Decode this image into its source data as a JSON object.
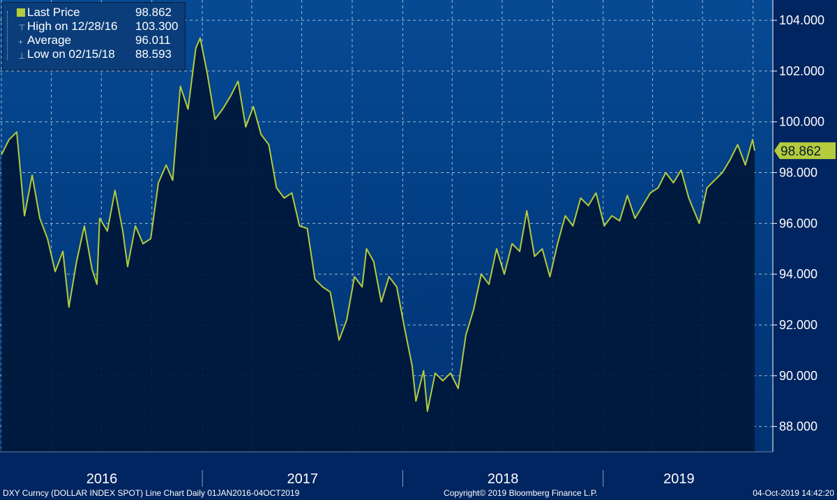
{
  "chart_data": {
    "type": "area",
    "legend": {
      "rows": [
        {
          "label": "Last Price",
          "value": "98.862"
        },
        {
          "label": "High on 12/28/16",
          "value": "103.300"
        },
        {
          "label": "Average",
          "value": "96.011"
        },
        {
          "label": "Low on 02/15/18",
          "value": "88.593"
        }
      ],
      "placement": "top-left"
    },
    "y_axis": {
      "side": "right",
      "ylim": [
        87.0,
        104.8
      ],
      "ticks": [
        "104.000",
        "102.000",
        "100.000",
        "98.000",
        "96.000",
        "94.000",
        "92.000",
        "90.000",
        "88.000"
      ],
      "tick_values": [
        104,
        102,
        100,
        98,
        96,
        94,
        92,
        90,
        88
      ]
    },
    "x_axis": {
      "start": "2016-01-01",
      "end": "2019-10-04",
      "year_labels": [
        "2016",
        "2017",
        "2018",
        "2019"
      ],
      "year_boundaries": [
        "2017-01-01",
        "2018-01-01",
        "2019-01-01"
      ],
      "gridline_months": [
        "2016-01",
        "2016-04",
        "2016-07",
        "2016-10",
        "2017-01",
        "2017-04",
        "2017-07",
        "2017-10",
        "2018-01",
        "2018-04",
        "2018-07",
        "2018-10",
        "2019-01",
        "2019-04",
        "2019-07",
        "2019-10"
      ]
    },
    "last_price_tag": "98.862",
    "grid": true,
    "series": [
      {
        "name": "Last Price",
        "color": "#b4cc3c",
        "points": [
          [
            "2016-01-01",
            98.7
          ],
          [
            "2016-01-15",
            99.3
          ],
          [
            "2016-01-29",
            99.6
          ],
          [
            "2016-02-12",
            96.3
          ],
          [
            "2016-02-26",
            97.9
          ],
          [
            "2016-03-11",
            96.2
          ],
          [
            "2016-03-25",
            95.4
          ],
          [
            "2016-04-08",
            94.1
          ],
          [
            "2016-04-22",
            94.9
          ],
          [
            "2016-05-03",
            92.7
          ],
          [
            "2016-05-17",
            94.5
          ],
          [
            "2016-05-31",
            95.9
          ],
          [
            "2016-06-14",
            94.2
          ],
          [
            "2016-06-23",
            93.6
          ],
          [
            "2016-06-28",
            96.2
          ],
          [
            "2016-07-12",
            95.7
          ],
          [
            "2016-07-26",
            97.3
          ],
          [
            "2016-08-09",
            95.7
          ],
          [
            "2016-08-18",
            94.3
          ],
          [
            "2016-09-01",
            95.9
          ],
          [
            "2016-09-15",
            95.2
          ],
          [
            "2016-09-29",
            95.4
          ],
          [
            "2016-10-13",
            97.6
          ],
          [
            "2016-10-27",
            98.3
          ],
          [
            "2016-11-08",
            97.7
          ],
          [
            "2016-11-22",
            101.4
          ],
          [
            "2016-12-06",
            100.5
          ],
          [
            "2016-12-20",
            102.9
          ],
          [
            "2016-12-28",
            103.3
          ],
          [
            "2017-01-10",
            101.9
          ],
          [
            "2017-01-24",
            100.1
          ],
          [
            "2017-02-07",
            100.5
          ],
          [
            "2017-02-21",
            101.0
          ],
          [
            "2017-03-07",
            101.6
          ],
          [
            "2017-03-21",
            99.8
          ],
          [
            "2017-04-04",
            100.6
          ],
          [
            "2017-04-18",
            99.5
          ],
          [
            "2017-05-02",
            99.1
          ],
          [
            "2017-05-16",
            97.4
          ],
          [
            "2017-05-30",
            97.0
          ],
          [
            "2017-06-13",
            97.2
          ],
          [
            "2017-06-27",
            95.9
          ],
          [
            "2017-07-11",
            95.8
          ],
          [
            "2017-07-25",
            93.8
          ],
          [
            "2017-08-08",
            93.5
          ],
          [
            "2017-08-22",
            93.3
          ],
          [
            "2017-09-07",
            91.4
          ],
          [
            "2017-09-21",
            92.2
          ],
          [
            "2017-10-05",
            93.9
          ],
          [
            "2017-10-19",
            93.5
          ],
          [
            "2017-10-27",
            95.0
          ],
          [
            "2017-11-09",
            94.5
          ],
          [
            "2017-11-23",
            92.9
          ],
          [
            "2017-12-07",
            93.9
          ],
          [
            "2017-12-21",
            93.5
          ],
          [
            "2018-01-04",
            91.9
          ],
          [
            "2018-01-18",
            90.4
          ],
          [
            "2018-01-25",
            89.0
          ],
          [
            "2018-02-08",
            90.2
          ],
          [
            "2018-02-15",
            88.6
          ],
          [
            "2018-03-01",
            90.1
          ],
          [
            "2018-03-15",
            89.8
          ],
          [
            "2018-03-29",
            90.1
          ],
          [
            "2018-04-12",
            89.5
          ],
          [
            "2018-04-26",
            91.6
          ],
          [
            "2018-05-10",
            92.6
          ],
          [
            "2018-05-24",
            94.0
          ],
          [
            "2018-06-07",
            93.6
          ],
          [
            "2018-06-21",
            95.0
          ],
          [
            "2018-07-05",
            94.0
          ],
          [
            "2018-07-19",
            95.2
          ],
          [
            "2018-08-02",
            94.9
          ],
          [
            "2018-08-15",
            96.5
          ],
          [
            "2018-08-29",
            94.7
          ],
          [
            "2018-09-12",
            95.0
          ],
          [
            "2018-09-26",
            93.9
          ],
          [
            "2018-10-10",
            95.2
          ],
          [
            "2018-10-24",
            96.3
          ],
          [
            "2018-11-07",
            95.9
          ],
          [
            "2018-11-21",
            97.0
          ],
          [
            "2018-12-05",
            96.7
          ],
          [
            "2018-12-19",
            97.2
          ],
          [
            "2019-01-03",
            95.9
          ],
          [
            "2019-01-17",
            96.3
          ],
          [
            "2019-01-31",
            96.1
          ],
          [
            "2019-02-14",
            97.1
          ],
          [
            "2019-02-28",
            96.2
          ],
          [
            "2019-03-14",
            96.7
          ],
          [
            "2019-03-28",
            97.2
          ],
          [
            "2019-04-11",
            97.4
          ],
          [
            "2019-04-25",
            98.0
          ],
          [
            "2019-05-09",
            97.6
          ],
          [
            "2019-05-23",
            98.1
          ],
          [
            "2019-06-06",
            97.0
          ],
          [
            "2019-06-25",
            96.0
          ],
          [
            "2019-07-09",
            97.4
          ],
          [
            "2019-07-23",
            97.7
          ],
          [
            "2019-08-06",
            98.0
          ],
          [
            "2019-08-20",
            98.5
          ],
          [
            "2019-09-03",
            99.1
          ],
          [
            "2019-09-17",
            98.3
          ],
          [
            "2019-09-30",
            99.3
          ],
          [
            "2019-10-04",
            98.862
          ]
        ]
      }
    ]
  },
  "footer": {
    "security": "DXY Curncy (DOLLAR INDEX SPOT) Line Chart  Daily 01JAN2016-04OCT2019",
    "copyright": "Copyright© 2019 Bloomberg Finance L.P.",
    "timestamp": "04-Oct-2019 14:42:20"
  },
  "colors": {
    "background": "#002561",
    "plot_top": "#064a94",
    "plot_bottom": "#003272",
    "area_fill": "#00183a",
    "line": "#b4cc3c",
    "tag": "#b4cc3c",
    "grid": "#c8d4e8"
  }
}
